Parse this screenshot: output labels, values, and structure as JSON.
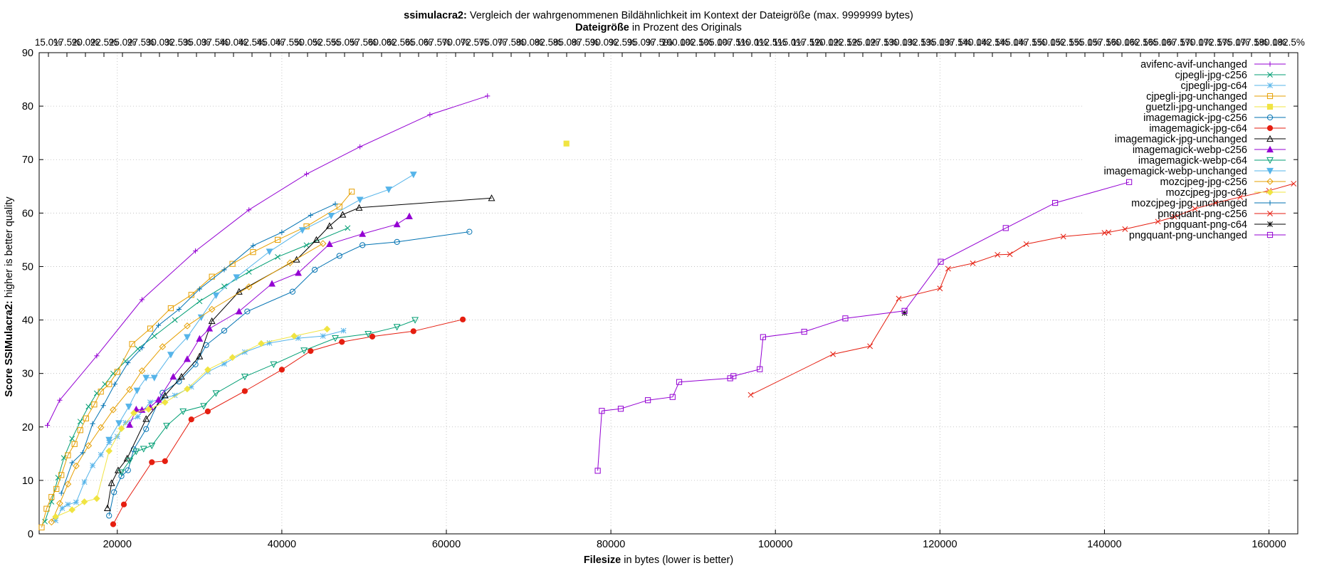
{
  "chart_data": {
    "type": "line",
    "title_bold": "ssimulacra2:",
    "title_rest": " Vergleich der wahrgenommenen Bildähnlichkeit im Kontext der Dateigröße (max. 9999999 bytes)",
    "subtitle_bold": "Dateigröße",
    "subtitle_rest": " in Prozent des Originals",
    "xlabel_bold": "Filesize",
    "xlabel_rest": " in bytes (lower is better)",
    "ylabel_bold": "Score SSIMulacra2:",
    "ylabel_rest": " higher is better quality",
    "xlim": [
      10500,
      163500
    ],
    "ylim": [
      0,
      90
    ],
    "x_ticks": [
      20000,
      40000,
      60000,
      80000,
      100000,
      120000,
      140000,
      160000
    ],
    "y_ticks": [
      0,
      10,
      20,
      30,
      40,
      50,
      60,
      70,
      80,
      90
    ],
    "top_axis_labels": [
      "15.0%",
      "17.5%",
      "20.0%",
      "22.5%",
      "25.0%",
      "27.5%",
      "30.0%",
      "32.5%",
      "35.0%",
      "37.5%",
      "40.0%",
      "42.5%",
      "45.0%",
      "47.5%",
      "50.0%",
      "52.5%",
      "55.0%",
      "57.5%",
      "60.0%",
      "62.5%",
      "65.0%",
      "67.5%",
      "70.0%",
      "72.5%",
      "75.0%",
      "77.5%",
      "80.0%",
      "82.5%",
      "85.0%",
      "87.5%",
      "90.0%",
      "92.5%",
      "95.0%",
      "97.5%",
      "100.0%",
      "102.5%",
      "105.0%",
      "107.5%",
      "110.0%",
      "112.5%",
      "115.0%",
      "117.5%",
      "120.0%",
      "122.5%",
      "125.0%",
      "127.5%",
      "130.0%",
      "132.5%",
      "135.0%",
      "137.5%",
      "140.0%",
      "142.5%",
      "145.0%",
      "147.5%",
      "150.0%",
      "152.5%",
      "155.0%",
      "157.5%",
      "160.0%",
      "162.5%",
      "165.0%",
      "167.5%",
      "170.0%",
      "172.5%",
      "175.0%",
      "177.5%",
      "180.0%",
      "182.5%"
    ],
    "grid": true,
    "legend_position": "top-right",
    "series": [
      {
        "name": "avifenc-avif-unchanged",
        "color": "#9400d3",
        "marker": "plus",
        "x": [
          11500,
          13000,
          17500,
          23000,
          29500,
          36000,
          43000,
          49500,
          58000,
          65000
        ],
        "y": [
          20.3,
          25.0,
          33.3,
          43.8,
          52.9,
          60.6,
          67.3,
          72.4,
          78.4,
          81.9
        ]
      },
      {
        "name": "cjpegli-jpg-c256",
        "color": "#009e73",
        "marker": "cross",
        "x": [
          11200,
          12000,
          12800,
          13500,
          14500,
          15500,
          16500,
          17500,
          18500,
          19500,
          21000,
          22500,
          24500,
          27000,
          30000,
          33000,
          36000,
          39500,
          43000,
          48000
        ],
        "y": [
          2.3,
          6.0,
          10.5,
          14.2,
          17.8,
          21.0,
          23.8,
          26.3,
          28.0,
          30.0,
          32.3,
          34.6,
          37.0,
          40.0,
          43.5,
          46.3,
          49.0,
          51.8,
          54.0,
          57.2
        ]
      },
      {
        "name": "cjpegli-jpg-c64",
        "color": "#56b4e9",
        "marker": "star",
        "x": [
          12500,
          13300,
          14000,
          15000,
          16000,
          17000,
          18000,
          19000,
          20000,
          21000,
          22500,
          24000,
          25500,
          27000,
          29000,
          31000,
          33000,
          35500,
          38500,
          42000,
          45000,
          47500
        ],
        "y": [
          2.5,
          4.8,
          5.5,
          5.9,
          9.7,
          12.8,
          14.8,
          17.1,
          18.2,
          20.8,
          21.9,
          24.6,
          25.4,
          25.9,
          27.5,
          30.3,
          31.8,
          34.0,
          35.7,
          36.6,
          37.0,
          38.0
        ]
      },
      {
        "name": "cjpegli-jpg-unchanged",
        "color": "#e69f00",
        "marker": "square",
        "x": [
          10800,
          11400,
          12000,
          12600,
          13200,
          14000,
          14800,
          15500,
          16200,
          17200,
          18000,
          19000,
          20000,
          21800,
          24000,
          26500,
          29000,
          31500,
          34000,
          36500,
          39500,
          43000,
          47000,
          48500
        ],
        "y": [
          1.2,
          4.7,
          6.9,
          8.4,
          11.0,
          14.7,
          16.8,
          19.4,
          21.6,
          24.2,
          26.6,
          28.0,
          30.3,
          35.5,
          38.4,
          42.2,
          44.7,
          48.1,
          50.5,
          52.7,
          55.0,
          57.5,
          61.2,
          64.0
        ]
      },
      {
        "name": "guetzli-jpg-unchanged",
        "color": "#f0e442",
        "marker": "filledsquare",
        "x": [
          74600
        ],
        "y": [
          73.0
        ]
      },
      {
        "name": "imagemagick-jpg-c256",
        "color": "#0072b2",
        "marker": "circle",
        "x": [
          19000,
          19600,
          20500,
          21300,
          22000,
          23500,
          25500,
          27500,
          29500,
          30800,
          33000,
          35800,
          41300,
          44000,
          47000,
          49800,
          54000,
          62800
        ],
        "y": [
          3.4,
          7.8,
          10.8,
          11.9,
          15.8,
          19.6,
          26.4,
          28.5,
          31.7,
          35.3,
          38.0,
          41.6,
          45.3,
          49.4,
          52.0,
          54.0,
          54.6,
          56.5
        ]
      },
      {
        "name": "imagemagick-jpg-c64",
        "color": "#e51e10",
        "marker": "filledcircle",
        "x": [
          19500,
          20800,
          24200,
          25800,
          29000,
          31000,
          35500,
          40000,
          43500,
          47300,
          51000,
          56000,
          62000
        ],
        "y": [
          1.8,
          5.5,
          13.4,
          13.6,
          21.4,
          22.9,
          26.7,
          30.7,
          34.2,
          35.9,
          36.9,
          37.9,
          40.1
        ]
      },
      {
        "name": "imagemagick-jpg-unchanged",
        "color": "#000000",
        "marker": "triangle",
        "x": [
          18800,
          19300,
          20100,
          21200,
          23500,
          25800,
          27800,
          30000,
          31500,
          34800,
          41800,
          44200,
          45800,
          47400,
          49400,
          65500
        ],
        "y": [
          4.8,
          9.5,
          11.9,
          14.1,
          21.5,
          25.9,
          29.4,
          33.2,
          39.8,
          45.3,
          51.3,
          55.0,
          57.6,
          59.7,
          61.0,
          62.8
        ]
      },
      {
        "name": "imagemagick-webp-c256",
        "color": "#9400d3",
        "marker": "filledtriangle",
        "x": [
          21500,
          22300,
          23000,
          24000,
          25000,
          26800,
          28500,
          30000,
          31200,
          34800,
          38800,
          42000,
          45800,
          49800,
          54000,
          55500
        ],
        "y": [
          20.4,
          23.3,
          23.2,
          23.7,
          25.1,
          29.4,
          32.7,
          36.5,
          38.4,
          41.6,
          46.8,
          48.8,
          54.2,
          56.1,
          57.9,
          59.4
        ]
      },
      {
        "name": "imagemagick-webp-c64",
        "color": "#009e73",
        "marker": "invtriangle",
        "x": [
          20500,
          21500,
          22300,
          23200,
          24200,
          26000,
          28000,
          30500,
          32000,
          35500,
          39000,
          42700,
          46500,
          50500,
          54000,
          56200
        ],
        "y": [
          11.5,
          13.7,
          15.4,
          15.9,
          16.5,
          20.2,
          22.9,
          23.9,
          26.3,
          29.4,
          31.7,
          34.3,
          36.6,
          37.4,
          38.7,
          40.0
        ]
      },
      {
        "name": "imagemagick-webp-unchanged",
        "color": "#56b4e9",
        "marker": "filledinvtriangle",
        "x": [
          19000,
          20200,
          21400,
          22400,
          23500,
          24500,
          26500,
          28500,
          30200,
          32000,
          34500,
          38500,
          42500,
          46000,
          49500,
          53000,
          56000
        ],
        "y": [
          17.6,
          20.7,
          23.8,
          26.8,
          29.2,
          29.2,
          33.5,
          36.8,
          40.5,
          44.6,
          48.0,
          52.8,
          56.8,
          59.5,
          62.5,
          64.4,
          67.2
        ]
      },
      {
        "name": "mozcjpeg-jpg-c256",
        "color": "#e69f00",
        "marker": "diamond",
        "x": [
          12000,
          13000,
          14000,
          15000,
          16500,
          18000,
          19500,
          21500,
          23000,
          25500,
          28500,
          31500,
          36000,
          41000,
          45000
        ],
        "y": [
          2.2,
          5.7,
          9.3,
          12.7,
          16.5,
          19.9,
          23.2,
          27.0,
          30.5,
          35.0,
          38.9,
          42.0,
          46.2,
          50.7,
          54.3
        ]
      },
      {
        "name": "mozcjpeg-jpg-c64",
        "color": "#f0e442",
        "marker": "filleddiamond",
        "x": [
          12500,
          14500,
          16000,
          17500,
          19000,
          20500,
          22000,
          23800,
          25800,
          28500,
          31000,
          34000,
          37500,
          41500,
          45500
        ],
        "y": [
          3.2,
          4.5,
          6.0,
          6.6,
          15.5,
          19.7,
          22.6,
          23.3,
          24.6,
          27.1,
          30.7,
          33.0,
          35.6,
          37.0,
          38.3
        ]
      },
      {
        "name": "mozcjpeg-jpg-unchanged",
        "color": "#0072b2",
        "marker": "plus",
        "x": [
          13200,
          14500,
          15800,
          17000,
          18300,
          19700,
          21300,
          23000,
          25000,
          27500,
          30000,
          33000,
          36500,
          40000,
          43500,
          46500
        ],
        "y": [
          7.6,
          13.3,
          15.2,
          20.6,
          24.0,
          28.0,
          32.0,
          34.8,
          39.0,
          42.0,
          45.8,
          49.4,
          53.9,
          56.4,
          59.6,
          61.7
        ]
      },
      {
        "name": "pngquant-png-c256",
        "color": "#e51e10",
        "marker": "cross",
        "x": [
          97000,
          107000,
          111500,
          115000,
          120000,
          121000,
          124000,
          127000,
          128500,
          130500,
          135000,
          140000,
          140500,
          142500,
          146500,
          148500,
          151000,
          153500,
          156500,
          160000,
          163000
        ],
        "y": [
          26.0,
          33.6,
          35.1,
          44.0,
          45.9,
          49.6,
          50.6,
          52.2,
          52.3,
          54.2,
          55.6,
          56.3,
          56.4,
          57.0,
          58.4,
          59.3,
          60.8,
          61.9,
          63.0,
          64.2,
          65.5
        ]
      },
      {
        "name": "pngquant-png-c64",
        "color": "#000000",
        "marker": "star",
        "x": [
          115700
        ],
        "y": [
          41.3
        ]
      },
      {
        "name": "pngquant-png-unchanged",
        "color": "#9400d3",
        "marker": "square",
        "x": [
          78400,
          78900,
          81200,
          84500,
          87500,
          88300,
          94500,
          94900,
          98100,
          98500,
          103500,
          108500,
          115700,
          120100,
          128000,
          134000,
          143000
        ],
        "y": [
          11.8,
          23.0,
          23.4,
          25.0,
          25.6,
          28.4,
          29.1,
          29.5,
          30.8,
          36.8,
          37.8,
          40.3,
          41.7,
          50.9,
          57.2,
          61.9,
          65.8
        ]
      }
    ]
  }
}
